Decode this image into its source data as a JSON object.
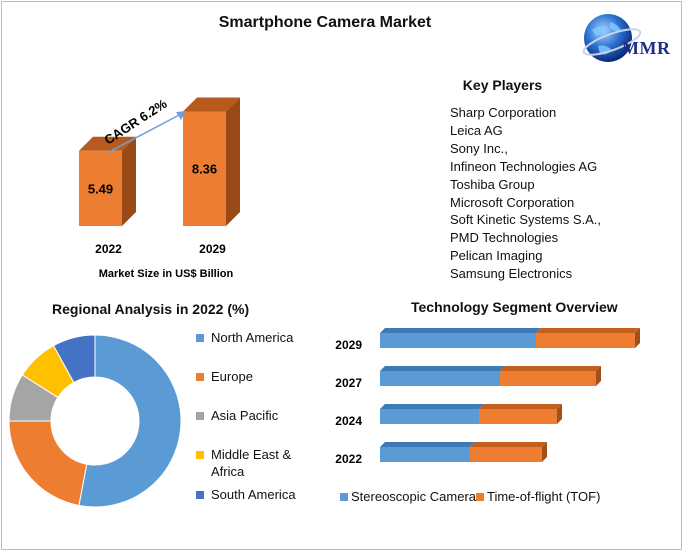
{
  "title": "Smartphone Camera Market",
  "logo": {
    "text": "MMR"
  },
  "key_players": {
    "title": "Key Players",
    "items": [
      "Sharp Corporation",
      "Leica AG",
      "Sony Inc.,",
      "Infineon Technologies AG",
      "Toshiba Group",
      "Microsoft Corporation",
      "Soft Kinetic Systems S.A.,",
      "PMD Technologies",
      "Pelican Imaging",
      "Samsung Electronics"
    ]
  },
  "colors": {
    "orange": "#ed7d31",
    "blue": "#5b9bd5",
    "grey": "#a5a5a5",
    "yellow": "#ffc000",
    "darkblue": "#4472c4",
    "arrow": "#6f9fd8"
  },
  "chart_data": [
    {
      "type": "bar",
      "categories": [
        "2022",
        "2029"
      ],
      "values": [
        5.49,
        8.36
      ],
      "data_labels": [
        "5.49",
        "8.36"
      ],
      "xlabel": "Market Size in US$ Billion",
      "annotation": "CAGR 6.2%"
    },
    {
      "type": "pie",
      "title": "Regional Analysis in 2022 (%)",
      "labels": [
        "North America",
        "Europe",
        "Asia Pacific",
        "Middle East & Africa",
        "South America"
      ],
      "values": [
        53,
        22,
        9,
        8,
        8
      ],
      "colors": [
        "#5b9bd5",
        "#ed7d31",
        "#a5a5a5",
        "#ffc000",
        "#4472c4"
      ],
      "donut": true,
      "legend": "right"
    },
    {
      "type": "bar",
      "orientation": "horizontal",
      "stacked": true,
      "title": "Technology Segment Overview",
      "categories": [
        "2029",
        "2027",
        "2024",
        "2022"
      ],
      "series": [
        {
          "name": "Stereoscopic Camera",
          "color": "#5b9bd5",
          "values": [
            5.2,
            4.0,
            3.3,
            3.0
          ]
        },
        {
          "name": "Time-of-flight (TOF)",
          "color": "#ed7d31",
          "values": [
            3.3,
            3.2,
            2.6,
            2.4
          ]
        }
      ],
      "legend": "bottom"
    }
  ]
}
